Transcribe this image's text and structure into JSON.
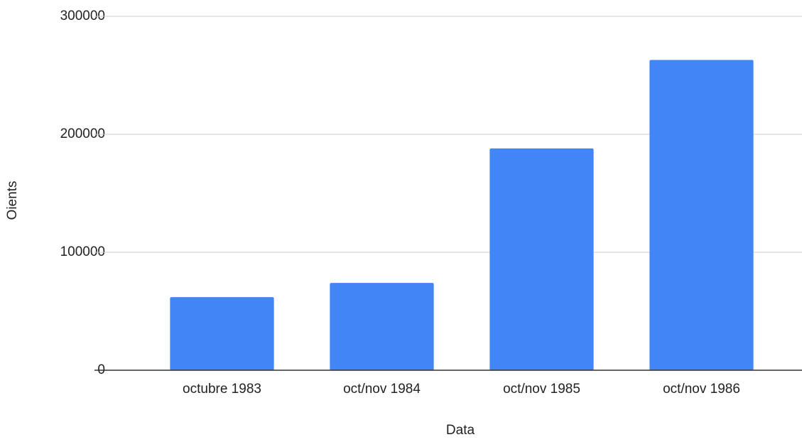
{
  "chart_data": {
    "type": "bar",
    "x_label": "Data",
    "y_label": "Oients",
    "categories": [
      "octubre 1983",
      "oct/nov 1984",
      "oct/nov 1985",
      "oct/nov 1986"
    ],
    "values": [
      62000,
      74000,
      188000,
      263000
    ],
    "color": "#4285f4",
    "ylim": [
      0,
      300000
    ],
    "yticks": [
      0,
      100000,
      200000,
      300000
    ],
    "grid": true
  }
}
